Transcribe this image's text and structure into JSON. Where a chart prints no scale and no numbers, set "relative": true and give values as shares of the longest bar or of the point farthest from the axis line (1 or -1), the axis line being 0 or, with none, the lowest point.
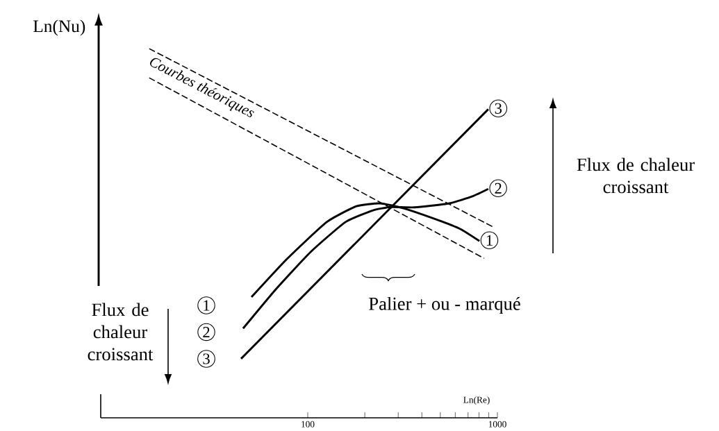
{
  "chart_data": {
    "type": "line",
    "relative": true,
    "legend": "right",
    "log": "x",
    "xlabel": "Ln(Re)",
    "ylabel": "Ln(Nu)",
    "xlim": [
      8.1,
      1000
    ],
    "xticks": [
      100,
      {
        "value": 200,
        "label": null
      },
      {
        "value": 300,
        "label": null
      },
      {
        "value": 400,
        "label": null
      },
      {
        "value": 500,
        "label": null
      },
      {
        "value": 600,
        "label": null
      },
      {
        "value": 700,
        "label": null
      },
      {
        "value": 800,
        "label": null
      },
      {
        "value": 900,
        "label": null
      },
      1000
    ],
    "series": [
      {
        "color": "#000000",
        "line_style": "dashed",
        "x": [
          14.6,
          966
        ],
        "values": [
          1,
          0.515
        ]
      },
      {
        "color": "#000000",
        "line_style": "dashed",
        "x": [
          14.6,
          851
        ],
        "values": [
          0.921,
          0.432
        ]
      },
      {
        "name": "3",
        "color": "#000000",
        "line_style": "solid",
        "x": [
          44.5,
          895
        ],
        "values": [
          0.16,
          0.836
        ]
      },
      {
        "name": "2",
        "color": "#000000",
        "line_style": "solid",
        "x": [
          45.6,
          67.8,
          103.4,
          157.8,
          220.9,
          275,
          366,
          558,
          738,
          895
        ],
        "values": [
          0.242,
          0.348,
          0.449,
          0.53,
          0.562,
          0.571,
          0.57,
          0.581,
          0.6,
          0.62
        ]
      },
      {
        "name": "1",
        "color": "#000000",
        "line_style": "solid",
        "x": [
          50.5,
          77.6,
          125.6,
          180.4,
          240,
          317.5,
          484,
          640,
          804
        ],
        "values": [
          0.327,
          0.43,
          0.53,
          0.573,
          0.581,
          0.568,
          0.536,
          0.511,
          0.479
        ]
      }
    ],
    "annotations": [
      "Courbes théoriques",
      "Palier + ou - marqué",
      "Flux de chaleur croissant",
      "Flux de chaleur croissant",
      "1",
      "2",
      "3"
    ]
  }
}
